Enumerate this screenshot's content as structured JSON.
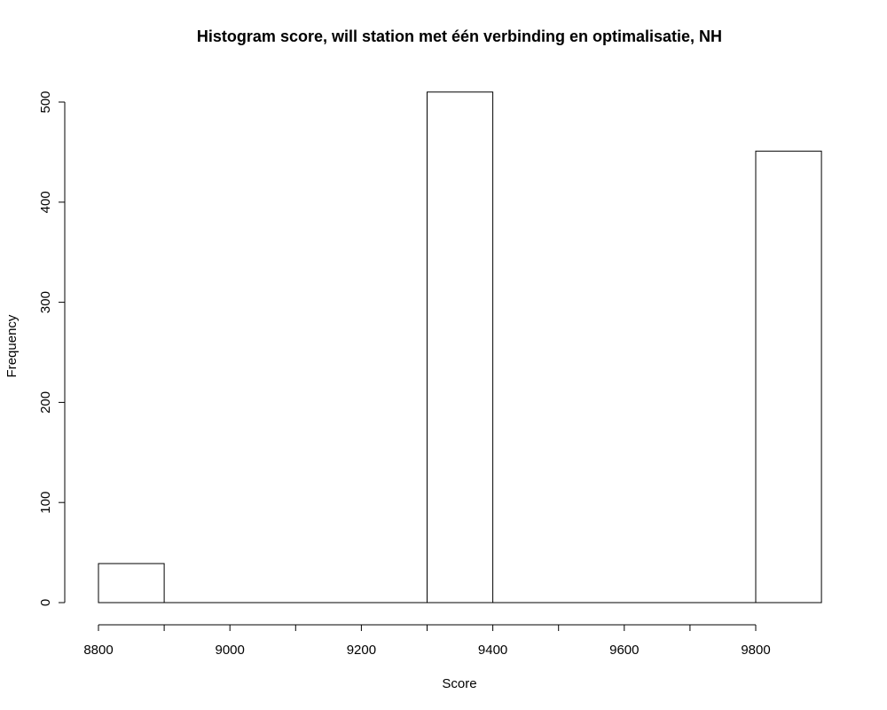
{
  "chart_data": {
    "type": "bar",
    "title": "Histogram score, will station met één verbinding en optimalisatie, NH",
    "xlabel": "Score",
    "ylabel": "Frequency",
    "xlim": [
      8800,
      9900
    ],
    "ylim": [
      0,
      500
    ],
    "x_ticks": [
      8800,
      9000,
      9200,
      9400,
      9600,
      9800
    ],
    "y_ticks": [
      0,
      100,
      200,
      300,
      400,
      500
    ],
    "bins": [
      {
        "start": 8800,
        "end": 8900,
        "count": 39
      },
      {
        "start": 8900,
        "end": 9000,
        "count": 0
      },
      {
        "start": 9000,
        "end": 9100,
        "count": 0
      },
      {
        "start": 9100,
        "end": 9200,
        "count": 0
      },
      {
        "start": 9200,
        "end": 9300,
        "count": 0
      },
      {
        "start": 9300,
        "end": 9400,
        "count": 510
      },
      {
        "start": 9400,
        "end": 9500,
        "count": 0
      },
      {
        "start": 9500,
        "end": 9600,
        "count": 0
      },
      {
        "start": 9600,
        "end": 9700,
        "count": 0
      },
      {
        "start": 9700,
        "end": 9800,
        "count": 0
      },
      {
        "start": 9800,
        "end": 9900,
        "count": 451
      }
    ],
    "bar_fill": "#ffffff",
    "bar_stroke": "#000000",
    "grid": false,
    "legend": false
  }
}
